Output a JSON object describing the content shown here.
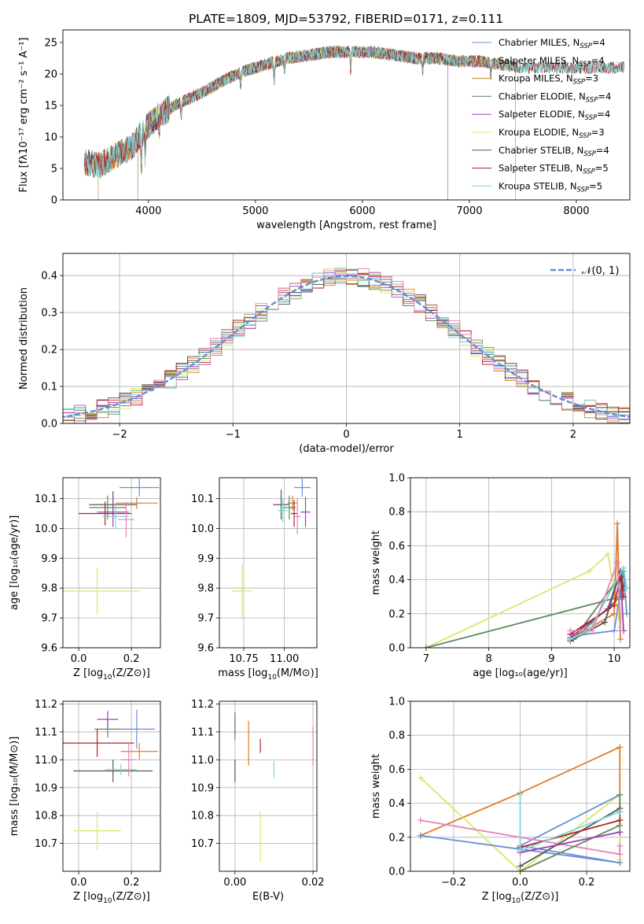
{
  "figure": {
    "title": "PLATE=1809, MJD=53792, FIBERID=0171, z=0.111"
  },
  "colors": [
    "#6a8fd8",
    "#e07b24",
    "#b08a2e",
    "#5f8a5f",
    "#9b3fb5",
    "#d9e86a",
    "#555555",
    "#b22222",
    "#7fd6d6",
    "#e584b8"
  ],
  "chart_data": [
    {
      "id": "spectrum",
      "type": "line",
      "xlabel": "wavelength [Angstrom, rest frame]",
      "ylabel": "Flux [fλ10⁻¹⁷ erg cm⁻² s⁻¹ A⁻¹]",
      "xlim": [
        3200,
        8500
      ],
      "ylim": [
        0,
        27
      ],
      "xticks": [
        "4000",
        "5000",
        "6000",
        "7000",
        "8000"
      ],
      "yticks": [
        "0",
        "5",
        "10",
        "15",
        "20",
        "25"
      ],
      "grid": false,
      "legend_position": "right",
      "continuum": {
        "x": [
          3400,
          3550,
          3700,
          3850,
          3950,
          4100,
          4300,
          4500,
          4700,
          4900,
          5100,
          5300,
          5500,
          5700,
          5900,
          6100,
          6300,
          6500,
          6700,
          6900,
          7100,
          7300,
          7500
        ],
        "y": [
          6,
          5.5,
          7,
          8.5,
          11,
          13.5,
          15.5,
          17,
          19,
          20.5,
          21.5,
          22.5,
          23,
          23.5,
          23.5,
          23.5,
          23,
          22.5,
          22.5,
          22,
          22,
          21.5,
          21
        ]
      },
      "series": [
        {
          "name": "Chabrier MILES, N_SSP=4",
          "label_main": "Chabrier MILES, N",
          "label_sub": "SSP",
          "label_end": "=4",
          "range": [
            3400,
            7450
          ]
        },
        {
          "name": "Salpeter MILES, N_SSP=4",
          "label_main": "Salpeter MILES, N",
          "label_sub": "SSP",
          "label_end": "=4",
          "range": [
            3530,
            7430
          ]
        },
        {
          "name": "Kroupa MILES, N_SSP=3",
          "label_main": "Kroupa MILES, N",
          "label_sub": "SSP",
          "label_end": "=3",
          "range": [
            3400,
            7450
          ]
        },
        {
          "name": "Chabrier ELODIE, N_SSP=4",
          "label_main": "Chabrier ELODIE, N",
          "label_sub": "SSP",
          "label_end": "=4",
          "range": [
            3900,
            6800
          ]
        },
        {
          "name": "Salpeter ELODIE, N_SSP=4",
          "label_main": "Salpeter ELODIE, N",
          "label_sub": "SSP",
          "label_end": "=4",
          "range": [
            3900,
            6800
          ]
        },
        {
          "name": "Kroupa ELODIE, N_SSP=3",
          "label_main": "Kroupa ELODIE, N",
          "label_sub": "SSP",
          "label_end": "=3",
          "range": [
            3920,
            6800
          ]
        },
        {
          "name": "Chabrier STELIB, N_SSP=4",
          "label_main": "Chabrier STELIB, N",
          "label_sub": "SSP",
          "label_end": "=4",
          "range": [
            3400,
            8450
          ]
        },
        {
          "name": "Salpeter STELIB, N_SSP=5",
          "label_main": "Salpeter STELIB, N",
          "label_sub": "SSP",
          "label_end": "=5",
          "range": [
            3400,
            8450
          ]
        },
        {
          "name": "Kroupa STELIB, N_SSP=5",
          "label_main": "Kroupa STELIB, N",
          "label_sub": "SSP",
          "label_end": "=5",
          "range": [
            3400,
            8450
          ]
        }
      ]
    },
    {
      "id": "residuals",
      "type": "line",
      "xlabel": "(data-model)/error",
      "ylabel": "Normed distribution",
      "xlim": [
        -2.5,
        2.5
      ],
      "ylim": [
        0,
        0.46
      ],
      "xticks": [
        "−2",
        "−1",
        "0",
        "1",
        "2"
      ],
      "yticks": [
        "0.0",
        "0.1",
        "0.2",
        "0.3",
        "0.4"
      ],
      "grid": true,
      "legend_position": "top-right",
      "legend": "𝒩(0, 1)",
      "bin_width": 0.1
    },
    {
      "id": "age_vs_Z",
      "type": "scatter",
      "xlabel_main": "Z [log",
      "xlabel_sub": "10",
      "xlabel_end": "(Z/Z⊙)]",
      "ylabel": "age  [log₁₀(age/yr)]",
      "xlim": [
        -0.06,
        0.31
      ],
      "ylim": [
        9.6,
        10.17
      ],
      "xticks": [
        "0.0",
        "0.2"
      ],
      "yticks": [
        "9.6",
        "9.7",
        "9.8",
        "9.9",
        "10.0",
        "10.1"
      ],
      "grid": true,
      "points": [
        {
          "x": 0.23,
          "y": 10.137,
          "xerr": 0.075,
          "yerr": 0.03,
          "c": 0
        },
        {
          "x": 0.22,
          "y": 10.085,
          "xerr": 0.08,
          "yerr": 0.02,
          "c": 1
        },
        {
          "x": 0.13,
          "y": 10.08,
          "xerr": 0.09,
          "yerr": 0.045,
          "c": 6
        },
        {
          "x": 0.11,
          "y": 10.07,
          "xerr": 0.07,
          "yerr": 0.04,
          "c": 3
        },
        {
          "x": 0.13,
          "y": 10.055,
          "xerr": 0.06,
          "yerr": 0.05,
          "c": 4
        },
        {
          "x": 0.1,
          "y": 10.05,
          "xerr": 0.1,
          "yerr": 0.04,
          "c": 7
        },
        {
          "x": 0.14,
          "y": 10.04,
          "xerr": 0.05,
          "yerr": 0.04,
          "c": 8
        },
        {
          "x": 0.18,
          "y": 10.03,
          "xerr": 0.03,
          "yerr": 0.06,
          "c": 9
        },
        {
          "x": 0.07,
          "y": 9.79,
          "xerr": 0.16,
          "yerr": 0.08,
          "c": 5
        }
      ]
    },
    {
      "id": "age_vs_mass",
      "type": "scatter",
      "xlabel_main": "mass [log",
      "xlabel_sub": "10",
      "xlabel_end": "(M/M⊙)]",
      "ylabel": "",
      "xlim": [
        10.6,
        11.2
      ],
      "ylim": [
        9.6,
        10.17
      ],
      "xticks": [
        "10.75",
        "11.00"
      ],
      "yticks": [
        "9.6",
        "9.7",
        "9.8",
        "9.9",
        "10.0",
        "10.1"
      ],
      "grid": true,
      "points": [
        {
          "x": 11.11,
          "y": 10.137,
          "xerr": 0.05,
          "yerr": 0.03,
          "c": 0
        },
        {
          "x": 11.05,
          "y": 10.085,
          "xerr": 0.03,
          "yerr": 0.025,
          "c": 1
        },
        {
          "x": 10.98,
          "y": 10.08,
          "xerr": 0.05,
          "yerr": 0.05,
          "c": 6
        },
        {
          "x": 11.03,
          "y": 10.07,
          "xerr": 0.04,
          "yerr": 0.04,
          "c": 3
        },
        {
          "x": 11.13,
          "y": 10.055,
          "xerr": 0.03,
          "yerr": 0.05,
          "c": 4
        },
        {
          "x": 11.06,
          "y": 10.05,
          "xerr": 0.02,
          "yerr": 0.045,
          "c": 7
        },
        {
          "x": 10.99,
          "y": 10.06,
          "xerr": 0.03,
          "yerr": 0.04,
          "c": 8
        },
        {
          "x": 11.08,
          "y": 10.04,
          "xerr": 0.02,
          "yerr": 0.06,
          "c": 9
        },
        {
          "x": 10.74,
          "y": 9.79,
          "xerr": 0.06,
          "yerr": 0.09,
          "c": 5
        }
      ]
    },
    {
      "id": "weight_vs_age",
      "type": "line",
      "xlabel": "age  [log₁₀(age/yr)]",
      "ylabel": "mass weight",
      "xlim": [
        6.75,
        10.25
      ],
      "ylim": [
        0,
        1.0
      ],
      "xticks": [
        "7",
        "8",
        "9",
        "10"
      ],
      "yticks": [
        "0.0",
        "0.2",
        "0.4",
        "0.6",
        "0.8",
        "1.0"
      ],
      "grid": true,
      "series": [
        {
          "c": 5,
          "x": [
            7.0,
            9.6,
            9.9,
            10.1,
            10.15
          ],
          "y": [
            0.0,
            0.45,
            0.55,
            0.12,
            0.4
          ]
        },
        {
          "c": 3,
          "x": [
            7.0,
            10.1,
            9.35,
            10.15
          ],
          "y": [
            0.0,
            0.3,
            0.05,
            0.45
          ]
        },
        {
          "c": 1,
          "x": [
            9.3,
            10.0,
            10.05,
            10.1
          ],
          "y": [
            0.05,
            0.2,
            0.73,
            0.05
          ]
        },
        {
          "c": 0,
          "x": [
            9.35,
            10.0,
            10.15,
            10.2
          ],
          "y": [
            0.07,
            0.1,
            0.45,
            0.2
          ]
        },
        {
          "c": 4,
          "x": [
            9.3,
            9.9,
            10.1,
            10.15
          ],
          "y": [
            0.06,
            0.23,
            0.45,
            0.1
          ]
        },
        {
          "c": 6,
          "x": [
            9.3,
            9.85,
            10.1,
            10.15
          ],
          "y": [
            0.04,
            0.15,
            0.45,
            0.35
          ]
        },
        {
          "c": 7,
          "x": [
            9.3,
            10.0,
            10.1,
            10.15
          ],
          "y": [
            0.08,
            0.25,
            0.42,
            0.3
          ]
        },
        {
          "c": 8,
          "x": [
            9.3,
            9.6,
            10.15,
            10.2
          ],
          "y": [
            0.05,
            0.1,
            0.47,
            0.35
          ]
        },
        {
          "c": 9,
          "x": [
            9.3,
            9.65,
            10.05,
            10.1
          ],
          "y": [
            0.1,
            0.1,
            0.5,
            0.1
          ]
        }
      ]
    },
    {
      "id": "mass_vs_Z",
      "type": "scatter",
      "xlabel_main": "Z [log",
      "xlabel_sub": "10",
      "xlabel_end": "(Z/Z⊙)]",
      "ylabel": "mass [log₁₀(M/M⊙)]",
      "xlim": [
        -0.06,
        0.31
      ],
      "ylim": [
        10.6,
        11.21
      ],
      "xticks": [
        "0.0",
        "0.2"
      ],
      "yticks": [
        "10.7",
        "10.8",
        "10.9",
        "11.0",
        "11.1",
        "11.2"
      ],
      "grid": true,
      "points": [
        {
          "x": 0.22,
          "y": 11.11,
          "xerr": 0.07,
          "yerr": 0.07,
          "c": 0
        },
        {
          "x": 0.23,
          "y": 11.03,
          "xerr": 0.07,
          "yerr": 0.03,
          "c": 1
        },
        {
          "x": 0.13,
          "y": 10.96,
          "xerr": 0.15,
          "yerr": 0.04,
          "c": 6
        },
        {
          "x": 0.11,
          "y": 11.11,
          "xerr": 0.05,
          "yerr": 0.03,
          "c": 3
        },
        {
          "x": 0.11,
          "y": 11.145,
          "xerr": 0.04,
          "yerr": 0.03,
          "c": 4
        },
        {
          "x": 0.07,
          "y": 11.06,
          "xerr": 0.14,
          "yerr": 0.05,
          "c": 7
        },
        {
          "x": 0.16,
          "y": 10.965,
          "xerr": 0.06,
          "yerr": 0.02,
          "c": 8
        },
        {
          "x": 0.19,
          "y": 11.0,
          "xerr": 0.03,
          "yerr": 0.06,
          "c": 9
        },
        {
          "x": 0.07,
          "y": 10.745,
          "xerr": 0.09,
          "yerr": 0.07,
          "c": 5
        }
      ]
    },
    {
      "id": "mass_vs_ebv",
      "type": "scatter",
      "xlabel": "E(B-V)",
      "ylabel": "",
      "xlim": [
        -0.004,
        0.021
      ],
      "ylim": [
        10.6,
        11.21
      ],
      "xticks": [
        "0.00",
        "0.02"
      ],
      "yticks": [
        "10.7",
        "10.8",
        "10.9",
        "11.0",
        "11.1",
        "11.2"
      ],
      "grid": true,
      "points": [
        {
          "x": 0.0,
          "y": 11.13,
          "xerr": 0,
          "yerr": 0.04,
          "c": 4
        },
        {
          "x": 0.0,
          "y": 10.96,
          "xerr": 0,
          "yerr": 0.04,
          "c": 6
        },
        {
          "x": 0.0,
          "y": 11.1,
          "xerr": 0,
          "yerr": 0.03,
          "c": 3
        },
        {
          "x": 0.0035,
          "y": 11.06,
          "xerr": 0,
          "yerr": 0.08,
          "c": 1
        },
        {
          "x": 0.0065,
          "y": 11.05,
          "xerr": 0,
          "yerr": 0.025,
          "c": 7
        },
        {
          "x": 0.01,
          "y": 10.965,
          "xerr": 0,
          "yerr": 0.03,
          "c": 8
        },
        {
          "x": 0.0065,
          "y": 10.725,
          "xerr": 0,
          "yerr": 0.09,
          "c": 5
        },
        {
          "x": 0.02,
          "y": 11.05,
          "xerr": 0,
          "yerr": 0.07,
          "c": 9
        }
      ]
    },
    {
      "id": "weight_vs_Z",
      "type": "line",
      "xlabel_main": "Z [log",
      "xlabel_sub": "10",
      "xlabel_end": "(Z/Z⊙)]",
      "ylabel": "mass weight",
      "xlim": [
        -0.33,
        0.33
      ],
      "ylim": [
        0,
        1.0
      ],
      "xticks": [
        "−0.2",
        "0.0",
        "0.2"
      ],
      "yticks": [
        "0.0",
        "0.2",
        "0.4",
        "0.6",
        "0.8",
        "1.0"
      ],
      "grid": true,
      "series": [
        {
          "c": 1,
          "x": [
            -0.3,
            0.0,
            0.3,
            0.3
          ],
          "y": [
            0.21,
            0.46,
            0.73,
            0.05
          ]
        },
        {
          "c": 5,
          "x": [
            -0.3,
            0.0,
            0.3,
            0.3
          ],
          "y": [
            0.55,
            0.0,
            0.45,
            0.07
          ]
        },
        {
          "c": 0,
          "x": [
            -0.3,
            0.3,
            0.0,
            0.3
          ],
          "y": [
            0.21,
            0.05,
            0.15,
            0.45
          ]
        },
        {
          "c": 9,
          "x": [
            -0.3,
            0.3,
            0.3
          ],
          "y": [
            0.3,
            0.1,
            0.15
          ]
        },
        {
          "c": 3,
          "x": [
            0.0,
            0.3,
            0.3
          ],
          "y": [
            0.0,
            0.27,
            0.45
          ]
        },
        {
          "c": 6,
          "x": [
            0.0,
            0.3,
            0.3
          ],
          "y": [
            0.03,
            0.37,
            0.35
          ]
        },
        {
          "c": 7,
          "x": [
            0.0,
            0.3,
            0.3
          ],
          "y": [
            0.14,
            0.3,
            0.3
          ]
        },
        {
          "c": 4,
          "x": [
            0.0,
            0.3,
            0.3
          ],
          "y": [
            0.11,
            0.23,
            0.23
          ]
        },
        {
          "c": 8,
          "x": [
            0.0,
            0.0,
            0.3
          ],
          "y": [
            0.45,
            0.12,
            0.35
          ]
        }
      ]
    }
  ]
}
